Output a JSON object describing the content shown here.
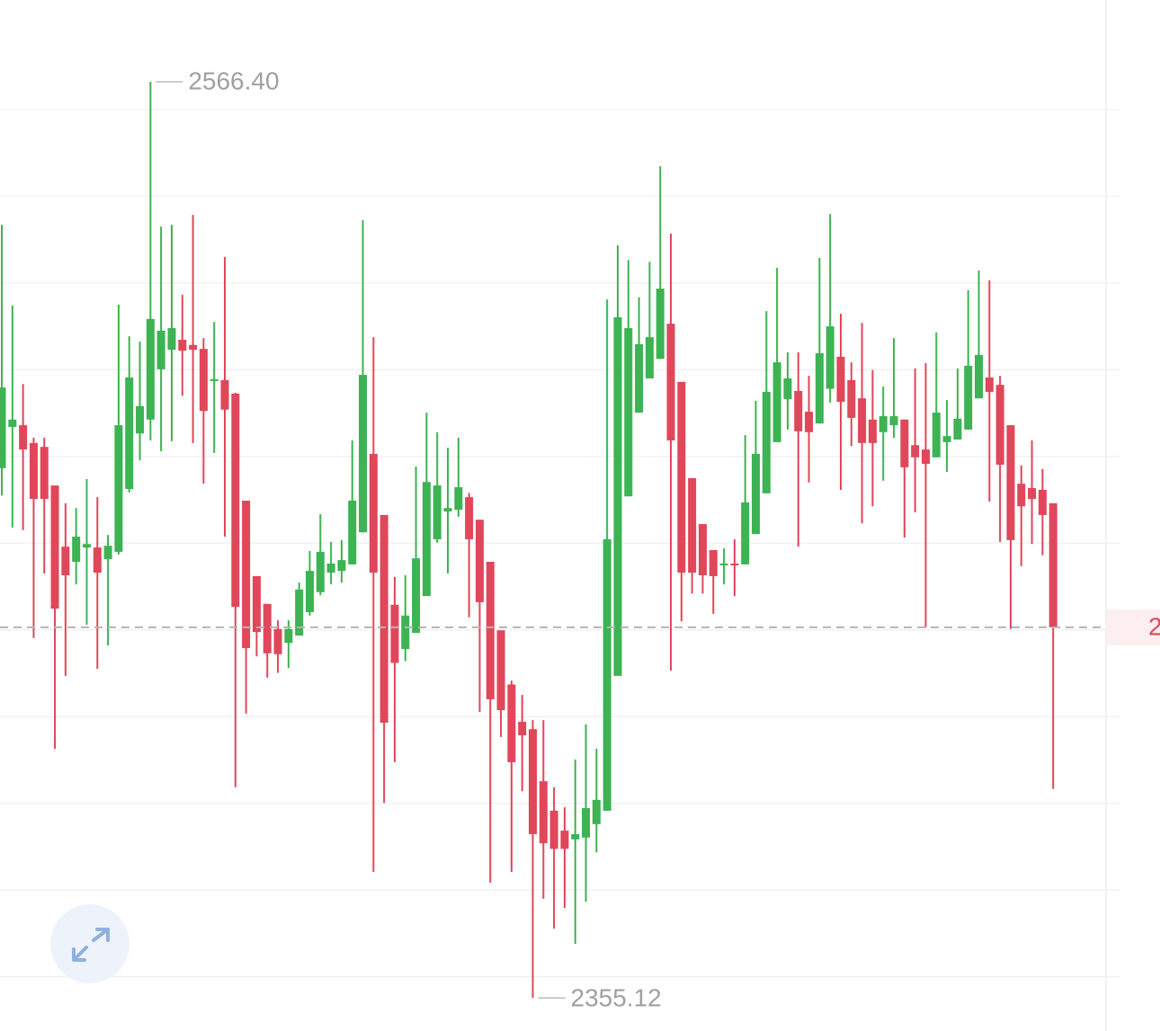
{
  "chart_data": {
    "type": "candlestick",
    "open": [
      2477.3,
      2486.8,
      2487.2,
      2483.1,
      2482.2,
      2473.3,
      2459.2,
      2455.7,
      2459.0,
      2459.0,
      2456.3,
      2458.0,
      2472.5,
      2485.3,
      2488.5,
      2500.1,
      2504.6,
      2506.9,
      2505.7,
      2504.8,
      2497.4,
      2497.6,
      2494.5,
      2469.8,
      2452.4,
      2446.0,
      2440.2,
      2437.0,
      2438.7,
      2444.1,
      2448.7,
      2453.2,
      2453.6,
      2455.1,
      2462.5,
      2480.6,
      2466.5,
      2445.8,
      2435.6,
      2439.3,
      2447.8,
      2460.9,
      2467.3,
      2467.7,
      2470.6,
      2465.4,
      2455.7,
      2439.9,
      2427.4,
      2418.8,
      2417.1,
      2405.1,
      2398.3,
      2393.7,
      2391.7,
      2392.1,
      2395.2,
      2398.3,
      2429.4,
      2470.8,
      2490.1,
      2498.0,
      2502.5,
      2510.6,
      2497.2,
      2475.0,
      2464.4,
      2458.4,
      2454.9,
      2455.3,
      2455.1,
      2462.1,
      2471.5,
      2483.3,
      2493.2,
      2495.1,
      2490.3,
      2487.6,
      2495.6,
      2503.0,
      2497.6,
      2493.4,
      2488.5,
      2485.6,
      2487.2,
      2488.5,
      2482.6,
      2481.6,
      2479.8,
      2483.3,
      2483.9,
      2486.2,
      2493.4,
      2498.2,
      2496.5,
      2487.2,
      2473.7,
      2472.7,
      2472.3,
      2469.2
    ],
    "high": [
      2533.4,
      2514.8,
      2496.7,
      2484.3,
      2484.3,
      2473.3,
      2469.2,
      2468.1,
      2474.8,
      2470.6,
      2461.9,
      2515.0,
      2507.7,
      2506.5,
      2566.4,
      2533.0,
      2533.4,
      2517.3,
      2535.7,
      2507.3,
      2511.0,
      2526.0,
      2494.7,
      2469.8,
      2452.4,
      2446.0,
      2442.2,
      2442.2,
      2450.9,
      2458.2,
      2466.7,
      2460.3,
      2460.7,
      2483.7,
      2534.5,
      2507.5,
      2466.5,
      2452.2,
      2452.6,
      2477.7,
      2490.1,
      2485.6,
      2482.0,
      2484.3,
      2471.6,
      2465.4,
      2455.7,
      2439.9,
      2428.3,
      2425.0,
      2419.2,
      2419.2,
      2403.7,
      2399.1,
      2410.1,
      2418.2,
      2412.6,
      2516.2,
      2528.7,
      2525.3,
      2516.7,
      2524.9,
      2546.9,
      2531.4,
      2497.2,
      2475.0,
      2464.4,
      2458.4,
      2458.8,
      2460.9,
      2484.9,
      2492.8,
      2513.5,
      2523.5,
      2504.0,
      2504.0,
      2498.6,
      2525.8,
      2535.9,
      2512.9,
      2501.7,
      2510.8,
      2499.9,
      2496.1,
      2507.3,
      2488.5,
      2500.3,
      2501.5,
      2508.6,
      2493.0,
      2500.3,
      2518.3,
      2522.9,
      2520.6,
      2498.6,
      2487.2,
      2477.9,
      2483.7,
      2477.1,
      2469.2
    ],
    "low": [
      2471.0,
      2463.6,
      2463.0,
      2438.1,
      2453.0,
      2412.6,
      2429.4,
      2450.5,
      2441.2,
      2431.0,
      2436.4,
      2457.4,
      2471.7,
      2479.1,
      2483.7,
      2481.2,
      2483.5,
      2494.0,
      2483.1,
      2473.7,
      2480.8,
      2461.5,
      2403.7,
      2420.7,
      2433.9,
      2429.0,
      2430.1,
      2431.2,
      2438.7,
      2443.3,
      2448.0,
      2450.5,
      2450.9,
      2455.1,
      2462.5,
      2384.2,
      2400.1,
      2409.5,
      2432.8,
      2439.3,
      2447.8,
      2460.1,
      2453.0,
      2466.1,
      2442.9,
      2421.1,
      2381.7,
      2415.3,
      2384.2,
      2402.8,
      2355.12,
      2378.0,
      2371.1,
      2375.9,
      2367.6,
      2377.3,
      2388.7,
      2398.3,
      2429.4,
      2470.8,
      2490.1,
      2498.0,
      2502.5,
      2430.6,
      2442.0,
      2448.4,
      2448.4,
      2443.7,
      2450.5,
      2447.8,
      2455.1,
      2462.1,
      2471.5,
      2483.3,
      2486.2,
      2459.2,
      2474.0,
      2487.6,
      2492.4,
      2472.3,
      2482.4,
      2464.6,
      2468.5,
      2474.4,
      2484.3,
      2461.3,
      2467.1,
      2440.6,
      2479.8,
      2476.4,
      2483.9,
      2486.2,
      2493.4,
      2469.6,
      2460.3,
      2440.2,
      2454.7,
      2459.8,
      2457.2,
      2403.3
    ],
    "close": [
      2495.9,
      2488.5,
      2481.6,
      2470.2,
      2470.2,
      2444.9,
      2452.6,
      2461.5,
      2459.8,
      2453.2,
      2459.4,
      2487.2,
      2498.2,
      2491.6,
      2511.7,
      2509.0,
      2509.6,
      2504.4,
      2504.6,
      2490.5,
      2497.8,
      2490.8,
      2445.3,
      2435.8,
      2439.5,
      2434.6,
      2434.4,
      2440.2,
      2449.3,
      2453.6,
      2458.0,
      2455.3,
      2456.1,
      2469.8,
      2498.8,
      2453.2,
      2418.6,
      2432.4,
      2443.3,
      2456.5,
      2474.1,
      2473.3,
      2468.1,
      2472.9,
      2460.9,
      2446.4,
      2424.0,
      2421.5,
      2409.5,
      2415.7,
      2392.9,
      2390.8,
      2389.5,
      2389.5,
      2392.9,
      2398.9,
      2400.8,
      2460.9,
      2512.1,
      2509.6,
      2505.9,
      2507.5,
      2518.7,
      2483.7,
      2453.2,
      2453.2,
      2452.6,
      2452.4,
      2455.3,
      2454.9,
      2469.4,
      2480.6,
      2494.9,
      2501.7,
      2498.0,
      2485.8,
      2485.6,
      2503.8,
      2510.0,
      2492.6,
      2488.9,
      2483.1,
      2483.1,
      2489.3,
      2489.3,
      2477.5,
      2479.8,
      2478.3,
      2490.1,
      2484.7,
      2488.7,
      2500.9,
      2503.4,
      2494.9,
      2478.1,
      2460.7,
      2468.5,
      2470.2,
      2466.5,
      2440.6
    ],
    "up_color": "#3db354",
    "down_color": "#e0475a",
    "extremes": [
      {
        "value": 2566.4,
        "label": "2566.40"
      },
      {
        "value": 2355.12,
        "label": "2355.12"
      }
    ],
    "ylim": [
      2347.5,
      2585.26
    ],
    "yticks": [
      2360,
      2380,
      2400,
      2420,
      2440,
      2460,
      2480,
      2500,
      2520,
      2540,
      2560
    ],
    "grid": true
  }
}
